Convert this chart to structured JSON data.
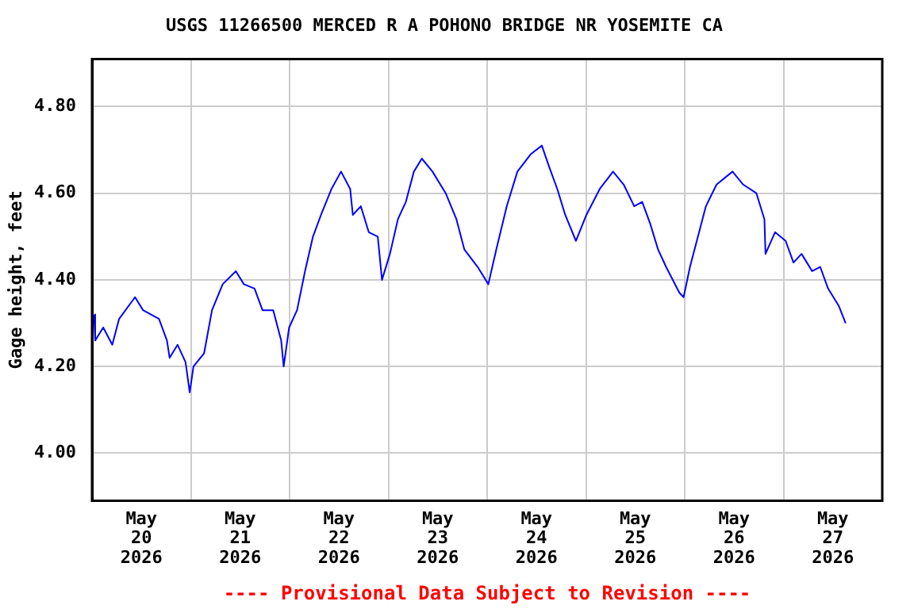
{
  "chart_data": {
    "type": "line",
    "title": "USGS 11266500 MERCED R A POHONO BRIDGE NR YOSEMITE CA",
    "ylabel": "Gage height, feet",
    "annotations": [
      "---- Provisional Data Subject to Revision ----"
    ],
    "x": [
      "2026-05-20T00:30",
      "2026-05-20T00:46",
      "2026-05-20T02:43",
      "2026-05-20T04:55",
      "2026-05-20T06:35",
      "2026-05-20T10:27",
      "2026-05-20T12:23",
      "2026-05-20T16:16",
      "2026-05-20T18:12",
      "2026-05-20T18:51",
      "2026-05-20T20:47",
      "2026-05-20T22:43",
      "2026-05-20T23:44",
      "2026-05-21T00:39",
      "2026-05-21T03:13",
      "2026-05-21T05:09",
      "2026-05-21T07:45",
      "2026-05-21T10:57",
      "2026-05-21T12:53",
      "2026-05-21T15:29",
      "2026-05-21T17:25",
      "2026-05-21T20:01",
      "2026-05-21T21:57",
      "2026-05-21T22:34",
      "2026-05-21T23:53",
      "2026-05-22T01:49",
      "2026-05-22T03:45",
      "2026-05-22T05:41",
      "2026-05-22T07:38",
      "2026-05-22T10:11",
      "2026-05-22T12:30",
      "2026-05-22T14:43",
      "2026-05-22T15:22",
      "2026-05-22T17:18",
      "2026-05-22T19:14",
      "2026-05-22T21:25",
      "2026-05-22T22:27",
      "2026-05-23T00:23",
      "2026-05-23T02:19",
      "2026-05-23T04:15",
      "2026-05-23T06:12",
      "2026-05-23T08:08",
      "2026-05-23T10:43",
      "2026-05-23T13:56",
      "2026-05-23T16:32",
      "2026-05-23T18:28",
      "2026-05-23T21:41",
      "2026-05-24T00:17",
      "2026-05-24T02:13",
      "2026-05-24T04:46",
      "2026-05-24T07:21",
      "2026-05-24T10:34",
      "2026-05-24T13:17",
      "2026-05-24T15:06",
      "2026-05-24T17:02",
      "2026-05-24T18:58",
      "2026-05-24T21:34",
      "2026-05-25T00:07",
      "2026-05-25T03:22",
      "2026-05-25T06:35",
      "2026-05-25T09:11",
      "2026-05-25T11:44",
      "2026-05-25T13:40",
      "2026-05-25T15:36",
      "2026-05-25T17:32",
      "2026-05-25T19:28",
      "2026-05-25T22:43",
      "2026-05-25T23:44",
      "2026-05-26T01:17",
      "2026-05-26T03:13",
      "2026-05-26T05:09",
      "2026-05-26T07:44",
      "2026-05-26T11:37",
      "2026-05-26T14:13",
      "2026-05-26T17:25",
      "2026-05-26T19:22",
      "2026-05-26T19:38",
      "2026-05-26T21:57",
      "2026-05-27T00:31",
      "2026-05-27T02:26",
      "2026-05-27T04:23",
      "2026-05-27T06:58",
      "2026-05-27T08:55",
      "2026-05-27T10:50",
      "2026-05-27T13:26",
      "2026-05-27T15:06"
    ],
    "series": [
      {
        "color": "#0000ff",
        "values": [
          4.32,
          4.26,
          4.29,
          4.25,
          4.31,
          4.36,
          4.33,
          4.31,
          4.26,
          4.22,
          4.25,
          4.21,
          4.14,
          4.2,
          4.23,
          4.33,
          4.39,
          4.42,
          4.39,
          4.38,
          4.33,
          4.33,
          4.26,
          4.2,
          4.29,
          4.33,
          4.42,
          4.5,
          4.55,
          4.61,
          4.65,
          4.61,
          4.55,
          4.57,
          4.51,
          4.5,
          4.4,
          4.46,
          4.54,
          4.58,
          4.65,
          4.68,
          4.65,
          4.6,
          4.54,
          4.47,
          4.43,
          4.39,
          4.47,
          4.57,
          4.65,
          4.69,
          4.71,
          4.66,
          4.61,
          4.55,
          4.49,
          4.55,
          4.61,
          4.65,
          4.62,
          4.57,
          4.58,
          4.53,
          4.47,
          4.43,
          4.37,
          4.36,
          4.43,
          4.5,
          4.57,
          4.62,
          4.65,
          4.62,
          4.6,
          4.54,
          4.46,
          4.51,
          4.49,
          4.44,
          4.46,
          4.42,
          4.43,
          4.38,
          4.34,
          4.3
        ]
      }
    ],
    "xlim": [
      "2026-05-20T00:00",
      "2026-05-28T00:00"
    ],
    "xticks": [
      {
        "value": "2026-05-20T12:00",
        "label": "May\n20\n2026"
      },
      {
        "value": "2026-05-21T00:00",
        "label": null
      },
      {
        "value": "2026-05-21T12:00",
        "label": "May\n21\n2026"
      },
      {
        "value": "2026-05-22T00:00",
        "label": null
      },
      {
        "value": "2026-05-22T12:00",
        "label": "May\n22\n2026"
      },
      {
        "value": "2026-05-23T00:00",
        "label": null
      },
      {
        "value": "2026-05-23T12:00",
        "label": "May\n23\n2026"
      },
      {
        "value": "2026-05-24T00:00",
        "label": null
      },
      {
        "value": "2026-05-24T12:00",
        "label": "May\n24\n2026"
      },
      {
        "value": "2026-05-25T00:00",
        "label": null
      },
      {
        "value": "2026-05-25T12:00",
        "label": "May\n25\n2026"
      },
      {
        "value": "2026-05-26T00:00",
        "label": null
      },
      {
        "value": "2026-05-26T12:00",
        "label": "May\n26\n2026"
      },
      {
        "value": "2026-05-27T00:00",
        "label": null
      },
      {
        "value": "2026-05-27T12:00",
        "label": "May\n27\n2026"
      }
    ],
    "ylim": [
      3.89,
      4.91
    ],
    "yticks": [
      {
        "value": 4.0,
        "label": "4.00"
      },
      {
        "value": 4.2,
        "label": "4.20"
      },
      {
        "value": 4.4,
        "label": "4.40"
      },
      {
        "value": 4.6,
        "label": "4.60"
      },
      {
        "value": 4.8,
        "label": "4.80"
      }
    ],
    "grid": true,
    "legend": false,
    "marker": "none",
    "line_style": "solid"
  }
}
